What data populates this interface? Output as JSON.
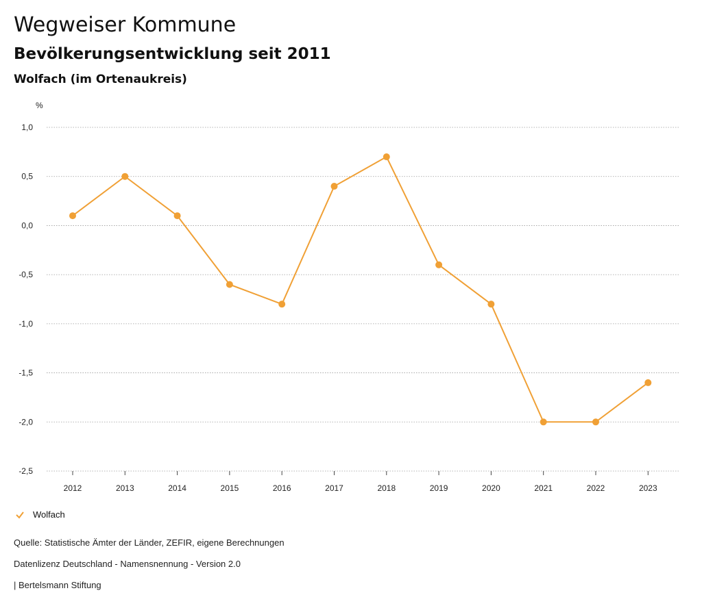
{
  "header": {
    "title": "Wegweiser Kommune",
    "subtitle": "Bevölkerungsentwicklung seit 2011",
    "region": "Wolfach (im Ortenaukreis)"
  },
  "legend": {
    "series_label": "Wolfach",
    "icon": "check-icon"
  },
  "footer": {
    "source": "Quelle: Statistische Ämter der Länder, ZEFIR, eigene Berechnungen",
    "license": "Datenlizenz Deutschland - Namensnennung - Version 2.0",
    "publisher": "| Bertelsmann Stiftung"
  },
  "chart_data": {
    "type": "line",
    "ylabel": "%",
    "ylim": [
      -2.5,
      1.0
    ],
    "yticks": [
      1.0,
      0.5,
      0.0,
      -0.5,
      -1.0,
      -1.5,
      -2.0,
      -2.5
    ],
    "ytick_labels": [
      "1,0",
      "0,5",
      "0,0",
      "-0,5",
      "-1,0",
      "-1,5",
      "-2,0",
      "-2,5"
    ],
    "grid": true,
    "legend_position": "bottom-left",
    "categories": [
      "2012",
      "2013",
      "2014",
      "2015",
      "2016",
      "2017",
      "2018",
      "2019",
      "2020",
      "2021",
      "2022",
      "2023"
    ],
    "series": [
      {
        "name": "Wolfach",
        "color": "#f0a035",
        "values": [
          0.1,
          0.5,
          0.1,
          -0.6,
          -0.8,
          0.4,
          0.7,
          -0.4,
          -0.8,
          -2.0,
          -2.0,
          -1.6
        ]
      }
    ]
  }
}
